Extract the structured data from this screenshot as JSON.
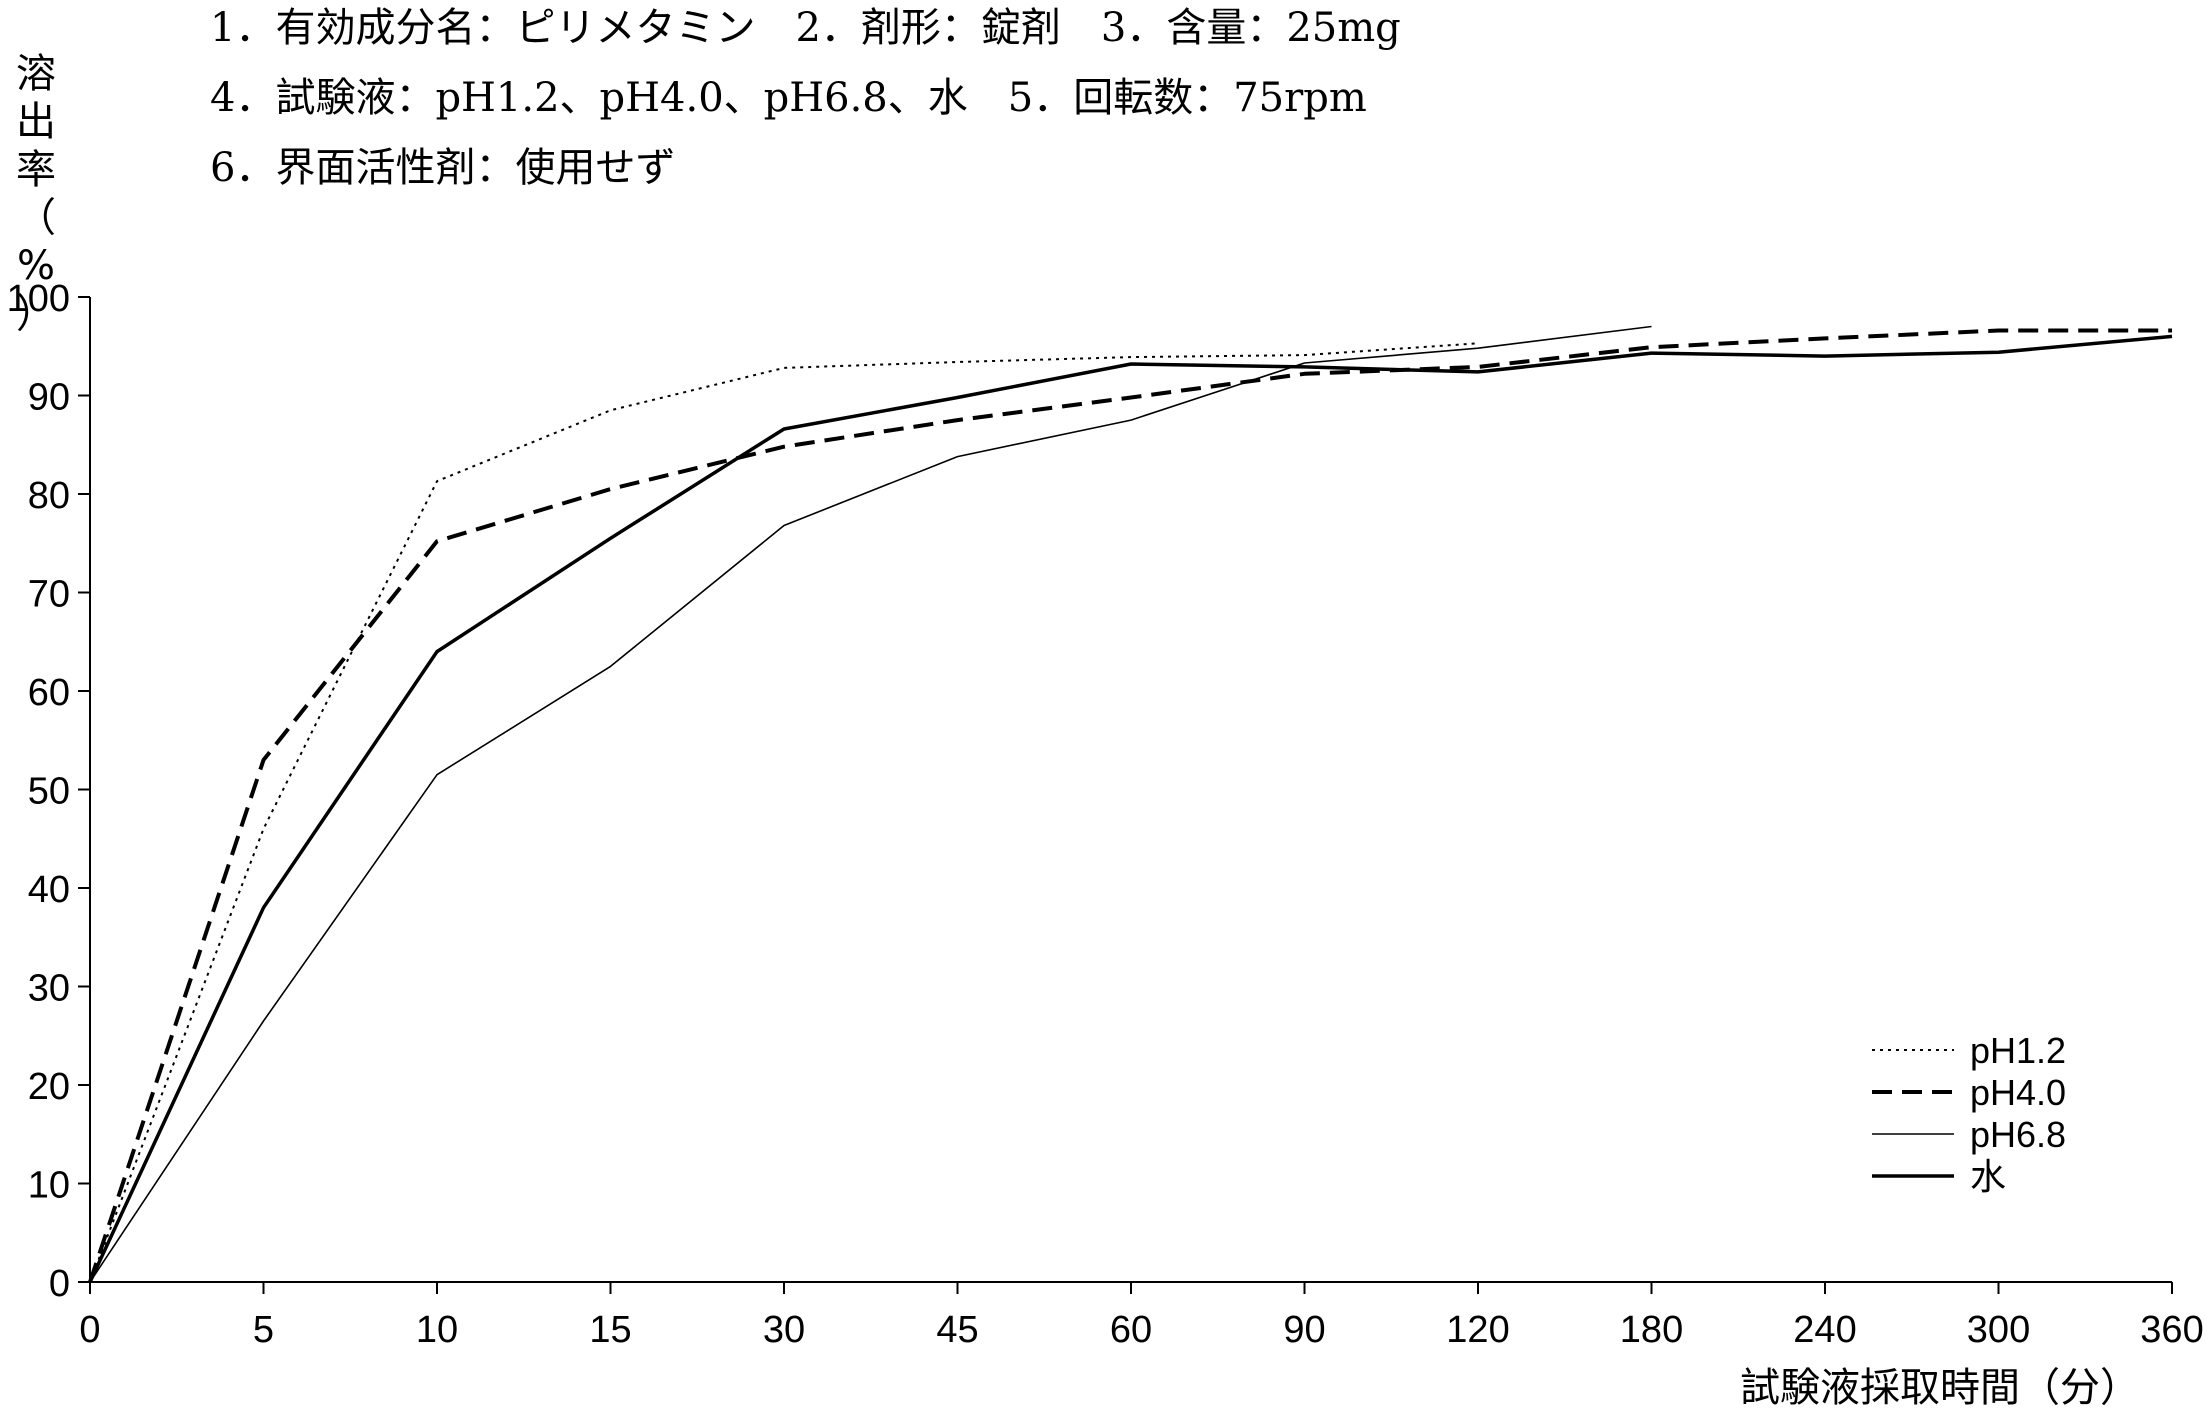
{
  "header": {
    "line1": "1．有効成分名：ピリメタミン　2．剤形：錠剤　3．含量：25mg",
    "line2": "4．試験液：pH1.2、pH4.0、pH6.8、水　5．回転数：75rpm",
    "line3": "6．界面活性剤：使用せず"
  },
  "chart_data": {
    "type": "line",
    "title": "",
    "xlabel": "試験液採取時間（分）",
    "ylabel": "溶出率（%）",
    "ylabel_chars": [
      "溶",
      "出",
      "率",
      "（",
      "%",
      "）"
    ],
    "categories": [
      "0",
      "5",
      "10",
      "15",
      "30",
      "45",
      "60",
      "90",
      "120",
      "180",
      "240",
      "300",
      "360"
    ],
    "yticks": [
      "0",
      "10",
      "20",
      "30",
      "40",
      "50",
      "60",
      "70",
      "80",
      "90",
      "100"
    ],
    "ylim": [
      0,
      100
    ],
    "grid": false,
    "legend_position": "bottom-right",
    "series": [
      {
        "name": "pH1.2",
        "style": "dotted",
        "color": "#000000",
        "values": [
          0,
          46,
          81.3,
          88.5,
          92.8,
          93.4,
          93.9,
          94.1,
          95.3,
          null,
          null,
          null,
          null
        ]
      },
      {
        "name": "pH4.0",
        "style": "dashed",
        "color": "#000000",
        "values": [
          0,
          53,
          75.2,
          80.5,
          84.8,
          87.5,
          89.8,
          92.2,
          92.9,
          94.9,
          95.8,
          96.6,
          96.6
        ]
      },
      {
        "name": "pH6.8",
        "style": "thin",
        "color": "#000000",
        "values": [
          0,
          26.5,
          51.5,
          62.5,
          76.8,
          83.8,
          87.5,
          93.3,
          94.8,
          97.0,
          null,
          null,
          null
        ]
      },
      {
        "name": "水",
        "style": "thick",
        "color": "#000000",
        "values": [
          0,
          38,
          64,
          75.5,
          86.6,
          89.8,
          93.2,
          92.9,
          92.4,
          94.3,
          94.0,
          94.4,
          96.0
        ]
      }
    ]
  }
}
